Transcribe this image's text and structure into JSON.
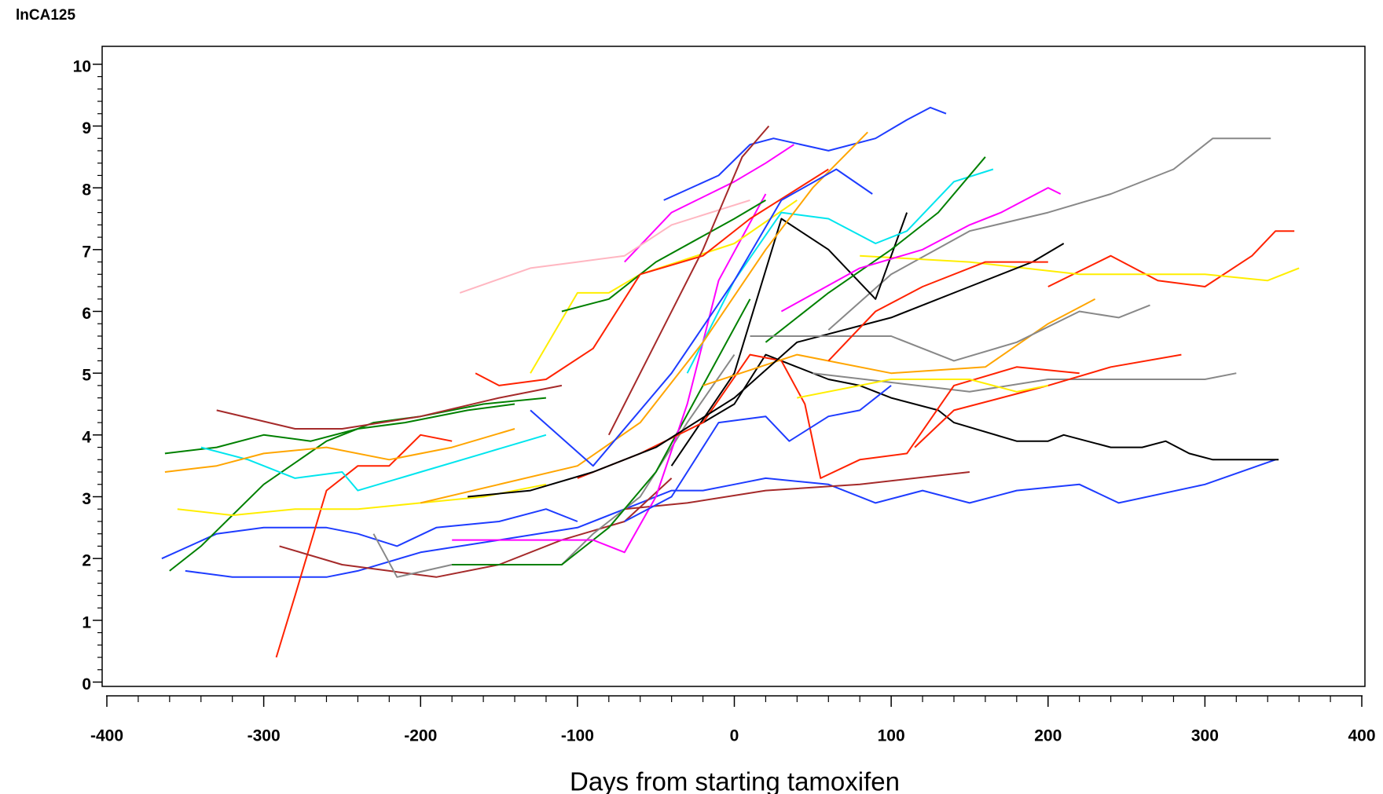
{
  "chart_data": {
    "type": "line",
    "y_label": "lnCA125",
    "x_label": "Days from starting tamoxifen",
    "xlim": [
      -403,
      402
    ],
    "ylim": [
      -0.07,
      10.29
    ],
    "xticks": [
      -400,
      -300,
      -200,
      -100,
      0,
      100,
      200,
      300,
      400
    ],
    "yticks": [
      0,
      1,
      2,
      3,
      4,
      5,
      6,
      7,
      8,
      9,
      10
    ],
    "xminorticks": [
      -380,
      -360,
      -340,
      -320,
      -280,
      -260,
      -240,
      -220,
      -180,
      -160,
      -140,
      -120,
      -80,
      -60,
      -40,
      -20,
      20,
      40,
      60,
      80,
      120,
      140,
      160,
      180,
      220,
      240,
      260,
      280,
      320,
      340,
      360,
      380
    ],
    "yminorticks": [
      0.2,
      0.4,
      0.6,
      0.8,
      1.2,
      1.4,
      1.6,
      1.8,
      2.2,
      2.4,
      2.6,
      2.8,
      3.2,
      3.4,
      3.6,
      3.8,
      4.2,
      4.4,
      4.6,
      4.8,
      5.2,
      5.4,
      5.6,
      5.8,
      6.2,
      6.4,
      6.6,
      6.8,
      7.2,
      7.4,
      7.6,
      7.8,
      8.2,
      8.4,
      8.6,
      8.8,
      9.2,
      9.4,
      9.6,
      9.8
    ],
    "series": [
      {
        "color": "#1e3cff",
        "x": [
          -365,
          -330,
          -300,
          -260,
          -240,
          -215,
          -190,
          -150,
          -120,
          -100
        ],
        "values": [
          2.0,
          2.4,
          2.5,
          2.5,
          2.4,
          2.2,
          2.5,
          2.6,
          2.8,
          2.6
        ]
      },
      {
        "color": "#1e3cff",
        "x": [
          -350,
          -320,
          -260,
          -240,
          -200,
          -150,
          -100,
          -60,
          -40,
          -20,
          0,
          20,
          60,
          90,
          120,
          150,
          180,
          220,
          245,
          300,
          345
        ],
        "values": [
          1.8,
          1.7,
          1.7,
          1.8,
          2.1,
          2.3,
          2.5,
          2.9,
          3.1,
          3.1,
          3.2,
          3.3,
          3.2,
          2.9,
          3.1,
          2.9,
          3.1,
          3.2,
          2.9,
          3.2,
          3.6
        ]
      },
      {
        "color": "#000000",
        "x": [
          -20,
          0,
          20,
          40,
          60,
          80,
          100,
          130,
          140,
          180,
          200,
          210,
          240,
          260,
          275,
          290,
          305,
          340,
          347
        ],
        "values": [
          4.2,
          4.5,
          5.3,
          5.1,
          4.9,
          4.8,
          4.6,
          4.4,
          4.2,
          3.9,
          3.9,
          4.0,
          3.8,
          3.8,
          3.9,
          3.7,
          3.6,
          3.6,
          3.6
        ]
      },
      {
        "color": "#888888",
        "x": [
          60,
          100,
          150,
          200,
          240,
          280,
          305,
          342
        ],
        "values": [
          5.7,
          6.6,
          7.3,
          7.6,
          7.9,
          8.3,
          8.8,
          8.8
        ]
      },
      {
        "color": "#ff2200",
        "x": [
          200,
          240,
          270,
          300,
          330,
          345,
          357
        ],
        "values": [
          6.4,
          6.9,
          6.5,
          6.4,
          6.9,
          7.3,
          7.3
        ]
      },
      {
        "color": "#ffee00",
        "x": [
          80,
          150,
          220,
          260,
          300,
          340,
          360
        ],
        "values": [
          6.9,
          6.8,
          6.6,
          6.6,
          6.6,
          6.5,
          6.7
        ]
      },
      {
        "color": "#888888",
        "x": [
          50,
          150,
          200,
          260,
          300,
          320
        ],
        "values": [
          5.0,
          4.7,
          4.9,
          4.9,
          4.9,
          5.0
        ]
      },
      {
        "color": "#ff2200",
        "x": [
          115,
          140,
          200,
          240,
          285
        ],
        "values": [
          3.8,
          4.4,
          4.8,
          5.1,
          5.3
        ]
      },
      {
        "color": "#a52a2a",
        "x": [
          -70,
          -30,
          20,
          80,
          150
        ],
        "values": [
          2.8,
          2.9,
          3.1,
          3.2,
          3.4
        ]
      },
      {
        "color": "#ff2200",
        "x": [
          -292,
          -280,
          -260,
          -240,
          -220,
          -200,
          -180
        ],
        "values": [
          0.4,
          1.4,
          3.1,
          3.5,
          3.5,
          4.0,
          3.9
        ]
      },
      {
        "color": "#008000",
        "x": [
          -360,
          -340,
          -300,
          -260,
          -230,
          -200,
          -160,
          -120
        ],
        "values": [
          1.8,
          2.2,
          3.2,
          3.9,
          4.2,
          4.3,
          4.5,
          4.6
        ]
      },
      {
        "color": "#008000",
        "x": [
          -363,
          -330,
          -300,
          -270,
          -240,
          -210,
          -170,
          -140
        ],
        "values": [
          3.7,
          3.8,
          4.0,
          3.9,
          4.1,
          4.2,
          4.4,
          4.5
        ]
      },
      {
        "color": "#a52a2a",
        "x": [
          -330,
          -280,
          -250,
          -200,
          -150,
          -110
        ],
        "values": [
          4.4,
          4.1,
          4.1,
          4.3,
          4.6,
          4.8
        ]
      },
      {
        "color": "#00e5ee",
        "x": [
          -340,
          -310,
          -280,
          -250,
          -240,
          -200,
          -160,
          -120
        ],
        "values": [
          3.8,
          3.6,
          3.3,
          3.4,
          3.1,
          3.4,
          3.7,
          4.0
        ]
      },
      {
        "color": "#ffa500",
        "x": [
          -363,
          -330,
          -300,
          -260,
          -220,
          -180,
          -140
        ],
        "values": [
          3.4,
          3.5,
          3.7,
          3.8,
          3.6,
          3.8,
          4.1
        ]
      },
      {
        "color": "#ffee00",
        "x": [
          -355,
          -320,
          -280,
          -240,
          -200,
          -160,
          -120
        ],
        "values": [
          2.8,
          2.7,
          2.8,
          2.8,
          2.9,
          3.0,
          3.2
        ]
      },
      {
        "color": "#a52a2a",
        "x": [
          -290,
          -250,
          -220,
          -190,
          -150,
          -110,
          -70,
          -40
        ],
        "values": [
          2.2,
          1.9,
          1.8,
          1.7,
          1.9,
          2.3,
          2.6,
          3.3
        ]
      },
      {
        "color": "#888888",
        "x": [
          -230,
          -215,
          -180,
          -150,
          -110,
          -90,
          -60,
          -30,
          0
        ],
        "values": [
          2.4,
          1.7,
          1.9,
          1.9,
          1.9,
          2.4,
          3.0,
          4.2,
          5.3
        ]
      },
      {
        "color": "#008000",
        "x": [
          -180,
          -175,
          -110,
          -80,
          -50,
          -20,
          10
        ],
        "values": [
          1.9,
          1.9,
          1.9,
          2.5,
          3.4,
          4.8,
          6.2
        ]
      },
      {
        "color": "#ff00ff",
        "x": [
          -180,
          -150,
          -120,
          -90,
          -70,
          -50,
          -30,
          -10,
          20
        ],
        "values": [
          2.3,
          2.3,
          2.3,
          2.3,
          2.1,
          3.0,
          4.5,
          6.5,
          7.9
        ]
      },
      {
        "color": "#1e3cff",
        "x": [
          -45,
          -10,
          10,
          25,
          60,
          90,
          110,
          125,
          135
        ],
        "values": [
          7.8,
          8.2,
          8.7,
          8.8,
          8.6,
          8.8,
          9.1,
          9.3,
          9.2
        ]
      },
      {
        "color": "#ff00ff",
        "x": [
          -70,
          -40,
          0,
          20,
          38
        ],
        "values": [
          6.8,
          7.6,
          8.1,
          8.4,
          8.7
        ]
      },
      {
        "color": "#ffee00",
        "x": [
          -130,
          -100,
          -80,
          -60,
          0,
          40
        ],
        "values": [
          5.0,
          6.3,
          6.3,
          6.6,
          7.1,
          7.8
        ]
      },
      {
        "color": "#ffb6c1",
        "x": [
          -175,
          -130,
          -100,
          -70,
          -40,
          10
        ],
        "values": [
          6.3,
          6.7,
          6.8,
          6.9,
          7.4,
          7.8
        ]
      },
      {
        "color": "#008000",
        "x": [
          -110,
          -80,
          -50,
          0,
          20
        ],
        "values": [
          6.0,
          6.2,
          6.8,
          7.5,
          7.8
        ]
      },
      {
        "color": "#a52a2a",
        "x": [
          -80,
          -50,
          -20,
          5,
          22
        ],
        "values": [
          4.0,
          5.5,
          7.0,
          8.5,
          9.0
        ]
      },
      {
        "color": "#ff2200",
        "x": [
          -165,
          -150,
          -120,
          -90,
          -60,
          -20,
          10,
          60
        ],
        "values": [
          5.0,
          4.8,
          4.9,
          5.4,
          6.6,
          6.9,
          7.5,
          8.3
        ]
      },
      {
        "color": "#000000",
        "x": [
          -40,
          0,
          30,
          60,
          90,
          110
        ],
        "values": [
          3.5,
          5.0,
          7.5,
          7.0,
          6.2,
          7.6
        ]
      },
      {
        "color": "#00e5ee",
        "x": [
          -30,
          0,
          30,
          60,
          90,
          110,
          140,
          165
        ],
        "values": [
          5.0,
          6.5,
          7.6,
          7.5,
          7.1,
          7.3,
          8.1,
          8.3
        ]
      },
      {
        "color": "#008000",
        "x": [
          20,
          60,
          100,
          130,
          160
        ],
        "values": [
          5.5,
          6.3,
          7.0,
          7.6,
          8.5
        ]
      },
      {
        "color": "#ff2200",
        "x": [
          -100,
          -60,
          -20,
          10,
          30,
          45,
          55,
          80,
          110,
          140,
          180,
          220
        ],
        "values": [
          3.3,
          3.7,
          4.2,
          5.3,
          5.2,
          4.5,
          3.3,
          3.6,
          3.7,
          4.8,
          5.1,
          5.0
        ]
      },
      {
        "color": "#1e3cff",
        "x": [
          -70,
          -40,
          -10,
          20,
          35,
          60,
          80,
          100
        ],
        "values": [
          2.6,
          3.0,
          4.2,
          4.3,
          3.9,
          4.3,
          4.4,
          4.8
        ]
      },
      {
        "color": "#ffa500",
        "x": [
          -20,
          40,
          100,
          160,
          200,
          230
        ],
        "values": [
          4.8,
          5.3,
          5.0,
          5.1,
          5.8,
          6.2
        ]
      },
      {
        "color": "#000000",
        "x": [
          -170,
          -130,
          -90,
          -50,
          0,
          40,
          100,
          150,
          190,
          210
        ],
        "values": [
          3.0,
          3.1,
          3.4,
          3.8,
          4.6,
          5.5,
          5.9,
          6.4,
          6.8,
          7.1
        ]
      },
      {
        "color": "#ff00ff",
        "x": [
          30,
          80,
          120,
          150,
          170,
          200,
          208
        ],
        "values": [
          6.0,
          6.7,
          7.0,
          7.4,
          7.6,
          8.0,
          7.9
        ]
      },
      {
        "color": "#ffee00",
        "x": [
          40,
          100,
          150,
          180,
          200
        ],
        "values": [
          4.6,
          4.9,
          4.9,
          4.7,
          4.8
        ]
      },
      {
        "color": "#ffa500",
        "x": [
          -200,
          -150,
          -100,
          -60,
          -20,
          20,
          50,
          85
        ],
        "values": [
          2.9,
          3.2,
          3.5,
          4.2,
          5.5,
          7.0,
          8.0,
          8.9
        ]
      },
      {
        "color": "#1e3cff",
        "x": [
          -130,
          -90,
          -40,
          0,
          30,
          65,
          88
        ],
        "values": [
          4.4,
          3.5,
          5.0,
          6.5,
          7.8,
          8.3,
          7.9
        ]
      },
      {
        "color": "#888888",
        "x": [
          10,
          60,
          100,
          140,
          180,
          220,
          245,
          265
        ],
        "values": [
          5.6,
          5.6,
          5.6,
          5.2,
          5.5,
          6.0,
          5.9,
          6.1
        ]
      },
      {
        "color": "#ff2200",
        "x": [
          60,
          90,
          120,
          160,
          200
        ],
        "values": [
          5.2,
          6.0,
          6.4,
          6.8,
          6.8
        ]
      }
    ]
  }
}
